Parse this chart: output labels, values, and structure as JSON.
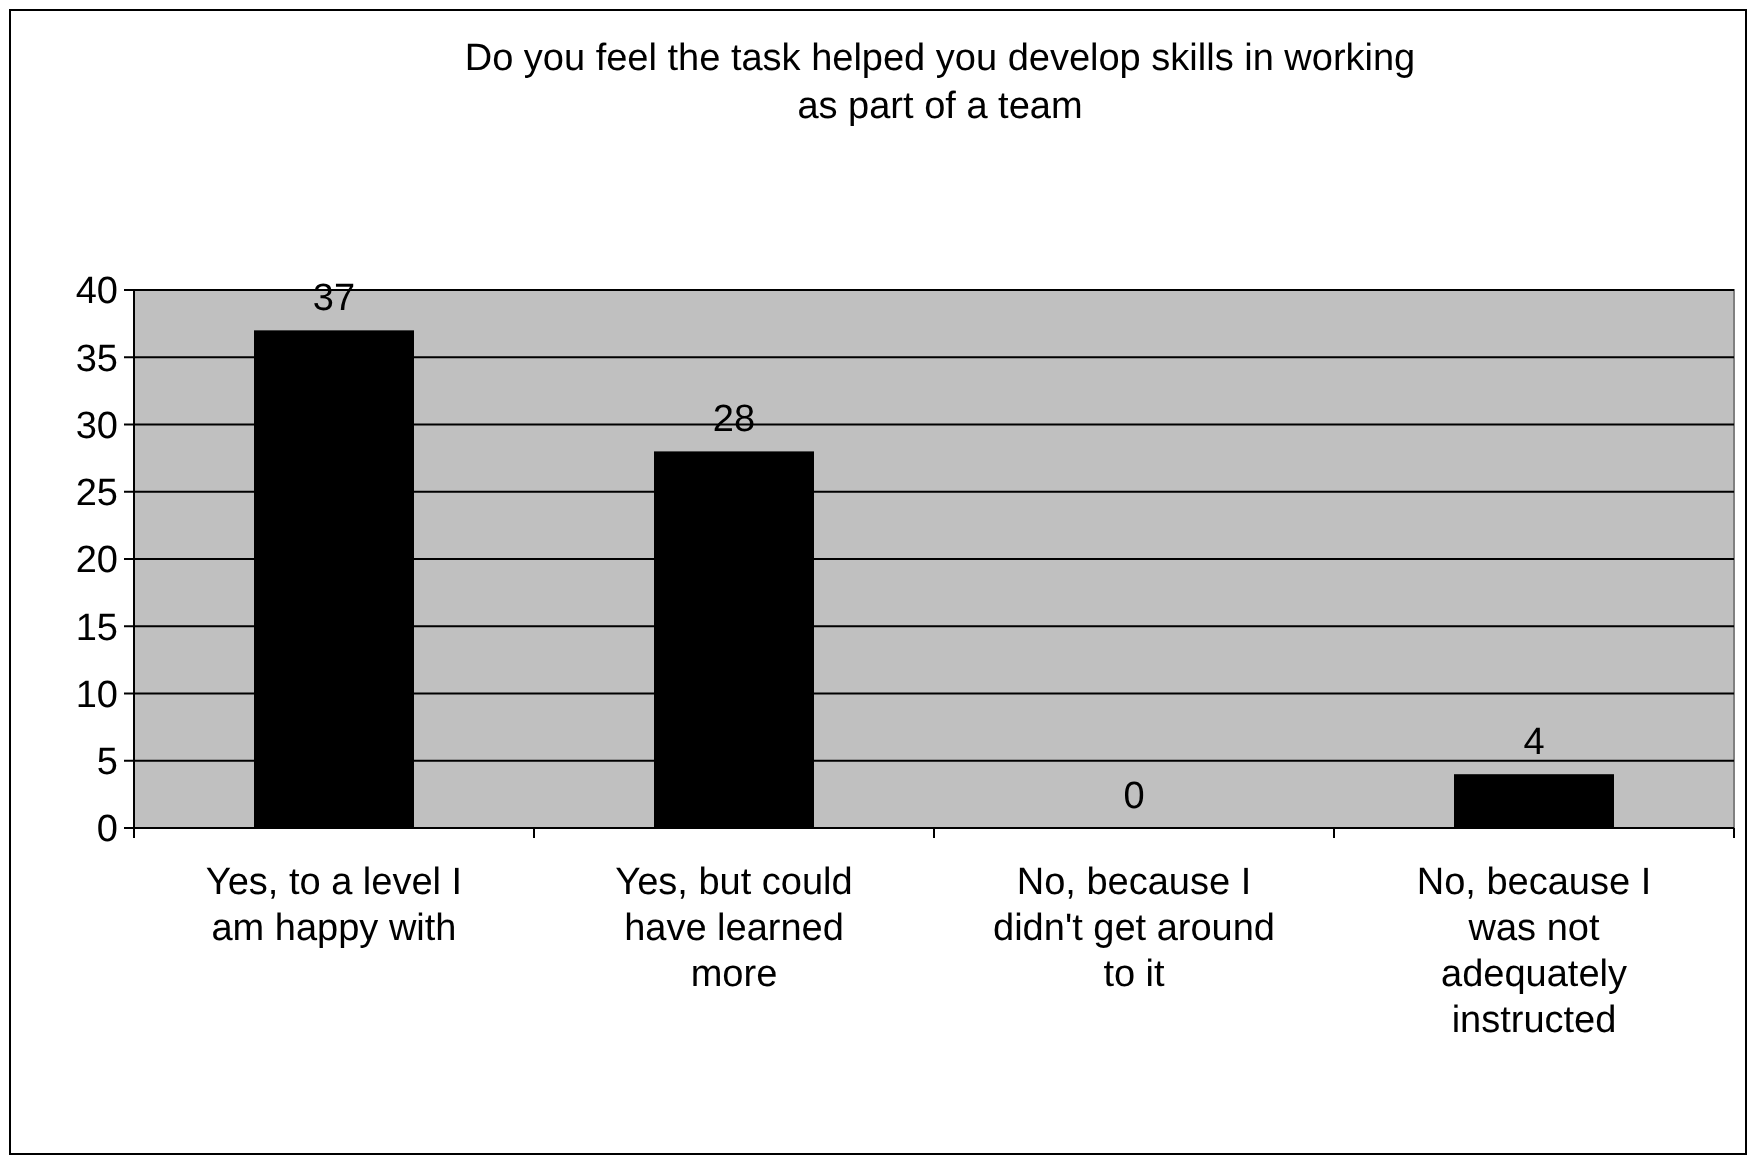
{
  "chart_data": {
    "type": "bar",
    "title": "Do you feel the task helped you develop skills in working as part of a team",
    "categories": [
      "Yes, to a level I am happy with",
      "Yes, but could have learned more",
      "No, because I didn't get around to it",
      "No, because I was not adequately instructed"
    ],
    "values": [
      37,
      28,
      0,
      4
    ],
    "color": "#000000",
    "ylim": [
      0,
      40
    ],
    "yticks": [
      0,
      5,
      10,
      15,
      20,
      25,
      30,
      35,
      40
    ],
    "grid": "y",
    "data_labels": true
  }
}
